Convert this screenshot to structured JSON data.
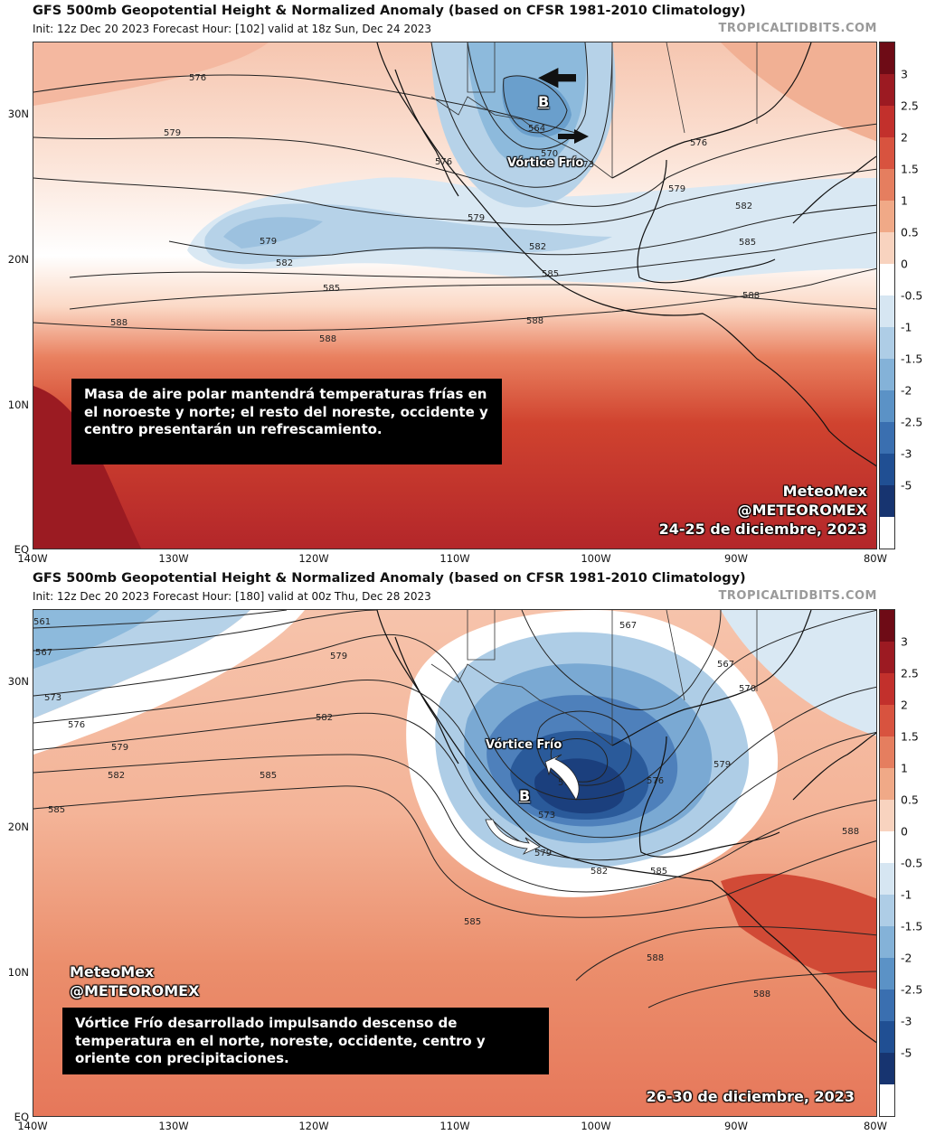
{
  "site": "TROPICALTIDBITS.COM",
  "colorbar": {
    "ticks": [
      "3",
      "2.5",
      "2",
      "1.5",
      "1",
      "0.5",
      "0",
      "-0.5",
      "-1",
      "-1.5",
      "-2",
      "-2.5",
      "-3",
      "-5"
    ],
    "colors": [
      "#6e0b16",
      "#9c1a22",
      "#c2302c",
      "#d8533f",
      "#e57e5f",
      "#f0a987",
      "#f8d3bf",
      "#ffffff",
      "#d6e6f2",
      "#aecde6",
      "#84b2d8",
      "#5b92c6",
      "#3a6fb0",
      "#204f93",
      "#173470",
      "#ffffff"
    ]
  },
  "axes": {
    "lat_labels": [
      "30N",
      "20N",
      "10N",
      "EQ"
    ],
    "lon_labels": [
      "140W",
      "130W",
      "120W",
      "110W",
      "100W",
      "90W",
      "80W"
    ]
  },
  "panels": [
    {
      "title": "GFS 500mb Geopotential Height & Normalized Anomaly (based on CFSR 1981-2010 Climatology)",
      "subtitle": "Init: 12z Dec 20 2023   Forecast Hour: [102]   valid at 18z Sun, Dec 24 2023",
      "textbox": "Masa de aire polar mantendrá temperaturas frías en el noroeste y norte; el resto del noreste, occidente y centro presentarán un refrescamiento.",
      "brand_name": "MeteoMex",
      "brand_handle": "@METEOROMEX",
      "date": "24-25 de diciembre, 2023",
      "annotation": "Vórtice Frío",
      "low_marker": "B",
      "contour_labels": [
        "576",
        "579",
        "576",
        "579",
        "582",
        "585",
        "588",
        "588",
        "588",
        "579",
        "582",
        "585",
        "588",
        "576",
        "579",
        "582",
        "585",
        "564",
        "570",
        "573"
      ]
    },
    {
      "title": "GFS 500mb Geopotential Height & Normalized Anomaly (based on CFSR 1981-2010 Climatology)",
      "subtitle": "Init: 12z Dec 20 2023   Forecast Hour: [180]   valid at 00z Thu, Dec 28 2023",
      "textbox": "Vórtice Frío desarrollado impulsando descenso de temperatura en el norte, noreste, occidente, centro y oriente con precipitaciones.",
      "brand_name": "MeteoMex",
      "brand_handle": "@METEOROMEX",
      "date": "26-30 de diciembre, 2023",
      "annotation": "Vórtice Frío",
      "low_marker": "B",
      "contour_labels": [
        "561",
        "567",
        "573",
        "576",
        "579",
        "582",
        "585",
        "579",
        "582",
        "585",
        "567",
        "567",
        "570",
        "576",
        "579",
        "573",
        "579",
        "582",
        "585",
        "585",
        "588",
        "588",
        "588",
        "570"
      ]
    }
  ]
}
